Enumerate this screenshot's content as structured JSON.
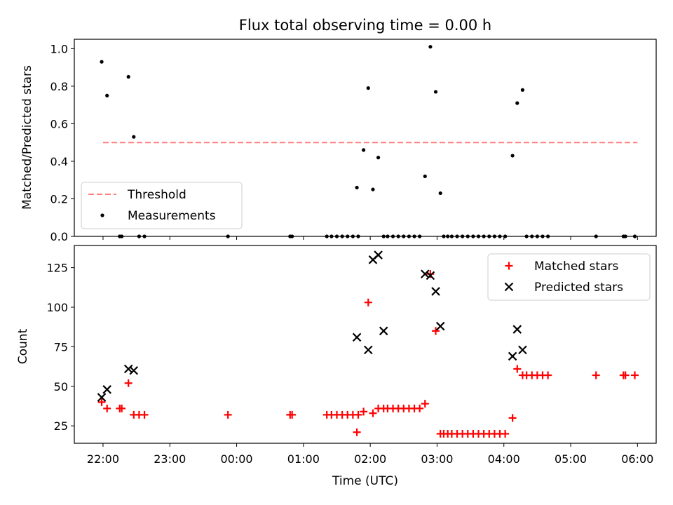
{
  "figure": {
    "title": "Flux total observing time = 0.00 h",
    "top_ylabel": "Matched/Predicted stars",
    "bottom_ylabel": "Count",
    "xlabel": "Time (UTC)"
  },
  "legend_top": {
    "threshold": "Threshold",
    "measurements": "Measurements"
  },
  "legend_bottom": {
    "matched": "Matched stars",
    "predicted": "Predicted stars"
  },
  "colors": {
    "threshold": "#ff7f7f",
    "measurements": "#000000",
    "matched": "#ff0000",
    "predicted": "#000000"
  },
  "chart_data": [
    {
      "type": "scatter",
      "title": "Flux total observing time = 0.00 h",
      "ylabel": "Matched/Predicted stars",
      "xlabel": "",
      "x_unit": "hours since 22:00 UTC",
      "xlim": [
        -0.43,
        8.28
      ],
      "ylim": [
        0,
        1.05
      ],
      "yticks": [
        0.0,
        0.2,
        0.4,
        0.6,
        0.8,
        1.0
      ],
      "ytick_labels": [
        "0.0",
        "0.2",
        "0.4",
        "0.6",
        "0.8",
        "1.0"
      ],
      "xticks": [
        0,
        1,
        2,
        3,
        4,
        5,
        6,
        7,
        8
      ],
      "threshold": {
        "name": "Threshold",
        "y": 0.5,
        "x_range": [
          0,
          8
        ]
      },
      "series": [
        {
          "name": "Measurements",
          "x": [
            -0.02,
            0.06,
            0.25,
            0.28,
            0.38,
            0.46,
            0.54,
            0.62,
            1.87,
            2.8,
            2.83,
            3.35,
            3.42,
            3.5,
            3.58,
            3.66,
            3.74,
            3.8,
            3.82,
            3.9,
            3.97,
            4.04,
            4.12,
            4.2,
            4.26,
            4.34,
            4.42,
            4.5,
            4.58,
            4.66,
            4.74,
            4.82,
            4.9,
            4.98,
            5.05,
            5.1,
            5.16,
            5.22,
            5.3,
            5.38,
            5.46,
            5.54,
            5.62,
            5.7,
            5.78,
            5.86,
            5.94,
            6.02,
            6.13,
            6.2,
            6.28,
            6.34,
            6.42,
            6.5,
            6.58,
            6.66,
            7.38,
            7.79,
            7.82,
            7.96
          ],
          "y": [
            0.93,
            0.75,
            0.0,
            0.0,
            0.85,
            0.53,
            0.0,
            0.0,
            0.0,
            0.0,
            0.0,
            0.0,
            0.0,
            0.0,
            0.0,
            0.0,
            0.0,
            0.26,
            0.0,
            0.46,
            0.79,
            0.25,
            0.42,
            0.0,
            0.0,
            0.0,
            0.0,
            0.0,
            0.0,
            0.0,
            0.0,
            0.32,
            1.01,
            0.77,
            0.23,
            0.0,
            0.0,
            0.0,
            0.0,
            0.0,
            0.0,
            0.0,
            0.0,
            0.0,
            0.0,
            0.0,
            0.0,
            0.0,
            0.43,
            0.71,
            0.78,
            0.0,
            0.0,
            0.0,
            0.0,
            0.0,
            0.0,
            0.0,
            0.0,
            0.0
          ]
        }
      ],
      "legend_position": "lower left"
    },
    {
      "type": "scatter",
      "title": "",
      "ylabel": "Count",
      "xlabel": "Time (UTC)",
      "x_unit": "hours since 22:00 UTC",
      "xlim": [
        -0.43,
        8.28
      ],
      "ylim": [
        14,
        139
      ],
      "yticks": [
        25,
        50,
        75,
        100,
        125
      ],
      "ytick_labels": [
        "25",
        "50",
        "75",
        "100",
        "125"
      ],
      "xticks": [
        0,
        1,
        2,
        3,
        4,
        5,
        6,
        7,
        8
      ],
      "xtick_labels": [
        "22:00",
        "23:00",
        "00:00",
        "01:00",
        "02:00",
        "03:00",
        "04:00",
        "05:00",
        "06:00"
      ],
      "series": [
        {
          "name": "Matched stars",
          "x": [
            -0.02,
            0.06,
            0.25,
            0.28,
            0.38,
            0.46,
            0.54,
            0.62,
            1.87,
            2.8,
            2.83,
            3.35,
            3.42,
            3.5,
            3.58,
            3.66,
            3.74,
            3.8,
            3.82,
            3.9,
            3.97,
            4.04,
            4.12,
            4.2,
            4.26,
            4.34,
            4.42,
            4.5,
            4.58,
            4.66,
            4.74,
            4.82,
            4.9,
            4.98,
            5.05,
            5.1,
            5.16,
            5.22,
            5.3,
            5.38,
            5.46,
            5.54,
            5.62,
            5.7,
            5.78,
            5.86,
            5.94,
            6.02,
            6.13,
            6.2,
            6.28,
            6.34,
            6.42,
            6.5,
            6.58,
            6.66,
            7.38,
            7.79,
            7.82,
            7.96
          ],
          "y": [
            40,
            36,
            36,
            36,
            52,
            32,
            32,
            32,
            32,
            32,
            32,
            32,
            32,
            32,
            32,
            32,
            32,
            21,
            32,
            34,
            103,
            33,
            36,
            36,
            36,
            36,
            36,
            36,
            36,
            36,
            36,
            39,
            121,
            85,
            20,
            20,
            20,
            20,
            20,
            20,
            20,
            20,
            20,
            20,
            20,
            20,
            20,
            20,
            30,
            61,
            57,
            57,
            57,
            57,
            57,
            57,
            57,
            57,
            57,
            57
          ],
          "marker": "+"
        },
        {
          "name": "Predicted stars",
          "x": [
            -0.02,
            0.06,
            0.38,
            0.46,
            3.8,
            3.97,
            4.04,
            4.12,
            4.2,
            4.82,
            4.9,
            4.98,
            5.05,
            6.13,
            6.2,
            6.28
          ],
          "y": [
            43,
            48,
            61,
            60,
            81,
            73,
            130,
            133,
            85,
            121,
            120,
            110,
            88,
            69,
            86,
            73
          ],
          "marker": "x"
        }
      ],
      "legend_position": "upper right"
    }
  ]
}
